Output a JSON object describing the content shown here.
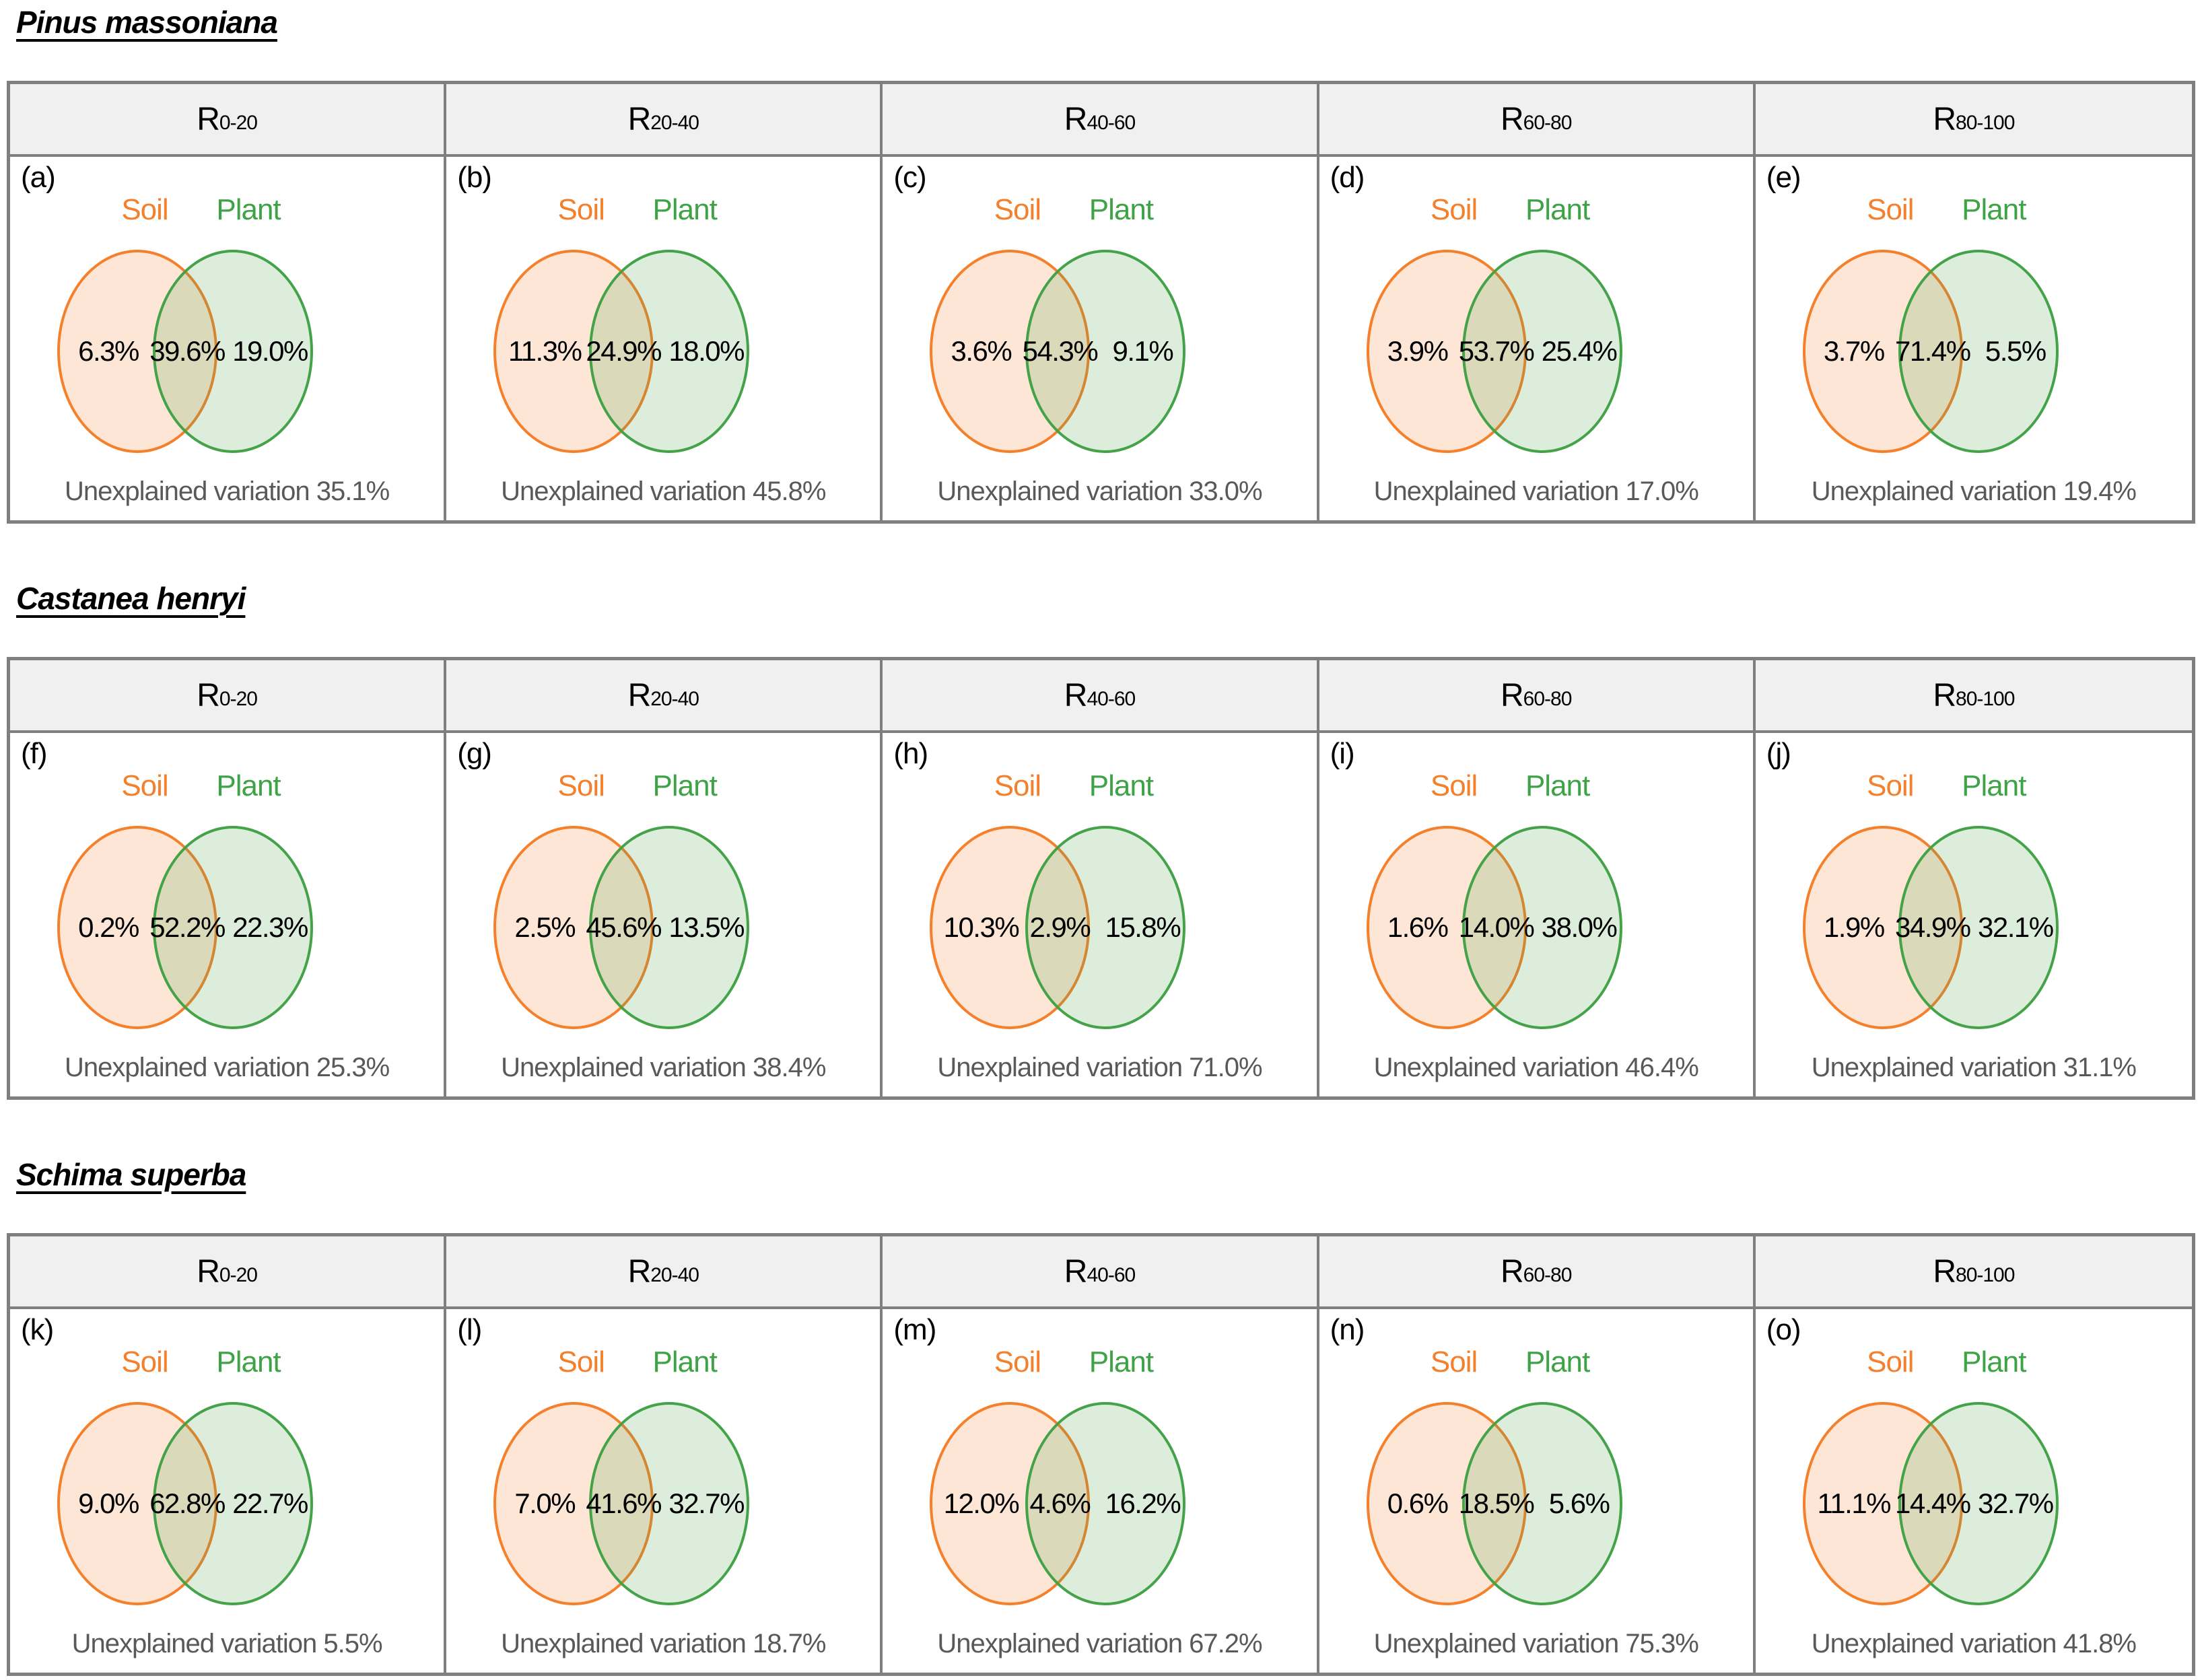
{
  "figure": {
    "labels": {
      "soil": "Soil",
      "plant": "Plant"
    },
    "colors": {
      "soil_stroke": "#f5802b",
      "soil_fill": "rgba(245,128,43,0.20)",
      "plant_stroke": "#44a248",
      "plant_fill": "rgba(80,165,80,0.20)",
      "border_gray": "#7f7f7f",
      "header_bg": "#f0f0f0",
      "unexplained_text": "#595959"
    },
    "row_headers": [
      {
        "base": "R",
        "sub": "0-20"
      },
      {
        "base": "R",
        "sub": "20-40"
      },
      {
        "base": "R",
        "sub": "40-60"
      },
      {
        "base": "R",
        "sub": "60-80"
      },
      {
        "base": "R",
        "sub": "80-100"
      }
    ],
    "species": [
      {
        "name": "Pinus massoniana",
        "panels": [
          {
            "letter": "(a)",
            "soil": "6.3%",
            "shared": "39.6%",
            "plant": "19.0%",
            "unexplained": "Unexplained variation 35.1%"
          },
          {
            "letter": "(b)",
            "soil": "11.3%",
            "shared": "24.9%",
            "plant": "18.0%",
            "unexplained": "Unexplained variation 45.8%"
          },
          {
            "letter": "(c)",
            "soil": "3.6%",
            "shared": "54.3%",
            "plant": "9.1%",
            "unexplained": "Unexplained variation 33.0%"
          },
          {
            "letter": "(d)",
            "soil": "3.9%",
            "shared": "53.7%",
            "plant": "25.4%",
            "unexplained": "Unexplained variation 17.0%"
          },
          {
            "letter": "(e)",
            "soil": "3.7%",
            "shared": "71.4%",
            "plant": "5.5%",
            "unexplained": "Unexplained variation 19.4%"
          }
        ]
      },
      {
        "name": "Castanea henryi",
        "panels": [
          {
            "letter": "(f)",
            "soil": "0.2%",
            "shared": "52.2%",
            "plant": "22.3%",
            "unexplained": "Unexplained variation 25.3%"
          },
          {
            "letter": "(g)",
            "soil": "2.5%",
            "shared": "45.6%",
            "plant": "13.5%",
            "unexplained": "Unexplained variation 38.4%"
          },
          {
            "letter": "(h)",
            "soil": "10.3%",
            "shared": "2.9%",
            "plant": "15.8%",
            "unexplained": "Unexplained variation 71.0%"
          },
          {
            "letter": "(i)",
            "soil": "1.6%",
            "shared": "14.0%",
            "plant": "38.0%",
            "unexplained": "Unexplained variation 46.4%"
          },
          {
            "letter": "(j)",
            "soil": "1.9%",
            "shared": "34.9%",
            "plant": "32.1%",
            "unexplained": "Unexplained variation 31.1%"
          }
        ]
      },
      {
        "name": "Schima superba",
        "panels": [
          {
            "letter": "(k)",
            "soil": "9.0%",
            "shared": "62.8%",
            "plant": "22.7%",
            "unexplained": "Unexplained variation 5.5%"
          },
          {
            "letter": "(l)",
            "soil": "7.0%",
            "shared": "41.6%",
            "plant": "32.7%",
            "unexplained": "Unexplained variation 18.7%"
          },
          {
            "letter": "(m)",
            "soil": "12.0%",
            "shared": "4.6%",
            "plant": "16.2%",
            "unexplained": "Unexplained variation 67.2%"
          },
          {
            "letter": "(n)",
            "soil": "0.6%",
            "shared": "18.5%",
            "plant": "5.6%",
            "unexplained": "Unexplained variation 75.3%"
          },
          {
            "letter": "(o)",
            "soil": "11.1%",
            "shared": "14.4%",
            "plant": "32.7%",
            "unexplained": "Unexplained variation 41.8%"
          }
        ]
      }
    ]
  },
  "chart_data": {
    "type": "venn",
    "sets": [
      "Soil",
      "Plant"
    ],
    "depth_columns": [
      "R0-20",
      "R20-40",
      "R40-60",
      "R60-80",
      "R80-100"
    ],
    "panels": [
      {
        "panel": "a",
        "species": "Pinus massoniana",
        "depth": "R0-20",
        "soil_pct": 6.3,
        "shared_pct": 39.6,
        "plant_pct": 19.0,
        "unexplained_pct": 35.1
      },
      {
        "panel": "b",
        "species": "Pinus massoniana",
        "depth": "R20-40",
        "soil_pct": 11.3,
        "shared_pct": 24.9,
        "plant_pct": 18.0,
        "unexplained_pct": 45.8
      },
      {
        "panel": "c",
        "species": "Pinus massoniana",
        "depth": "R40-60",
        "soil_pct": 3.6,
        "shared_pct": 54.3,
        "plant_pct": 9.1,
        "unexplained_pct": 33.0
      },
      {
        "panel": "d",
        "species": "Pinus massoniana",
        "depth": "R60-80",
        "soil_pct": 3.9,
        "shared_pct": 53.7,
        "plant_pct": 25.4,
        "unexplained_pct": 17.0
      },
      {
        "panel": "e",
        "species": "Pinus massoniana",
        "depth": "R80-100",
        "soil_pct": 3.7,
        "shared_pct": 71.4,
        "plant_pct": 5.5,
        "unexplained_pct": 19.4
      },
      {
        "panel": "f",
        "species": "Castanea henryi",
        "depth": "R0-20",
        "soil_pct": 0.2,
        "shared_pct": 52.2,
        "plant_pct": 22.3,
        "unexplained_pct": 25.3
      },
      {
        "panel": "g",
        "species": "Castanea henryi",
        "depth": "R20-40",
        "soil_pct": 2.5,
        "shared_pct": 45.6,
        "plant_pct": 13.5,
        "unexplained_pct": 38.4
      },
      {
        "panel": "h",
        "species": "Castanea henryi",
        "depth": "R40-60",
        "soil_pct": 10.3,
        "shared_pct": 2.9,
        "plant_pct": 15.8,
        "unexplained_pct": 71.0
      },
      {
        "panel": "i",
        "species": "Castanea henryi",
        "depth": "R60-80",
        "soil_pct": 1.6,
        "shared_pct": 14.0,
        "plant_pct": 38.0,
        "unexplained_pct": 46.4
      },
      {
        "panel": "j",
        "species": "Castanea henryi",
        "depth": "R80-100",
        "soil_pct": 1.9,
        "shared_pct": 34.9,
        "plant_pct": 32.1,
        "unexplained_pct": 31.1
      },
      {
        "panel": "k",
        "species": "Schima superba",
        "depth": "R0-20",
        "soil_pct": 9.0,
        "shared_pct": 62.8,
        "plant_pct": 22.7,
        "unexplained_pct": 5.5
      },
      {
        "panel": "l",
        "species": "Schima superba",
        "depth": "R20-40",
        "soil_pct": 7.0,
        "shared_pct": 41.6,
        "plant_pct": 32.7,
        "unexplained_pct": 18.7
      },
      {
        "panel": "m",
        "species": "Schima superba",
        "depth": "R40-60",
        "soil_pct": 12.0,
        "shared_pct": 4.6,
        "plant_pct": 16.2,
        "unexplained_pct": 67.2
      },
      {
        "panel": "n",
        "species": "Schima superba",
        "depth": "R60-80",
        "soil_pct": 0.6,
        "shared_pct": 18.5,
        "plant_pct": 5.6,
        "unexplained_pct": 75.3
      },
      {
        "panel": "o",
        "species": "Schima superba",
        "depth": "R80-100",
        "soil_pct": 11.1,
        "shared_pct": 14.4,
        "plant_pct": 32.7,
        "unexplained_pct": 41.8
      }
    ]
  }
}
